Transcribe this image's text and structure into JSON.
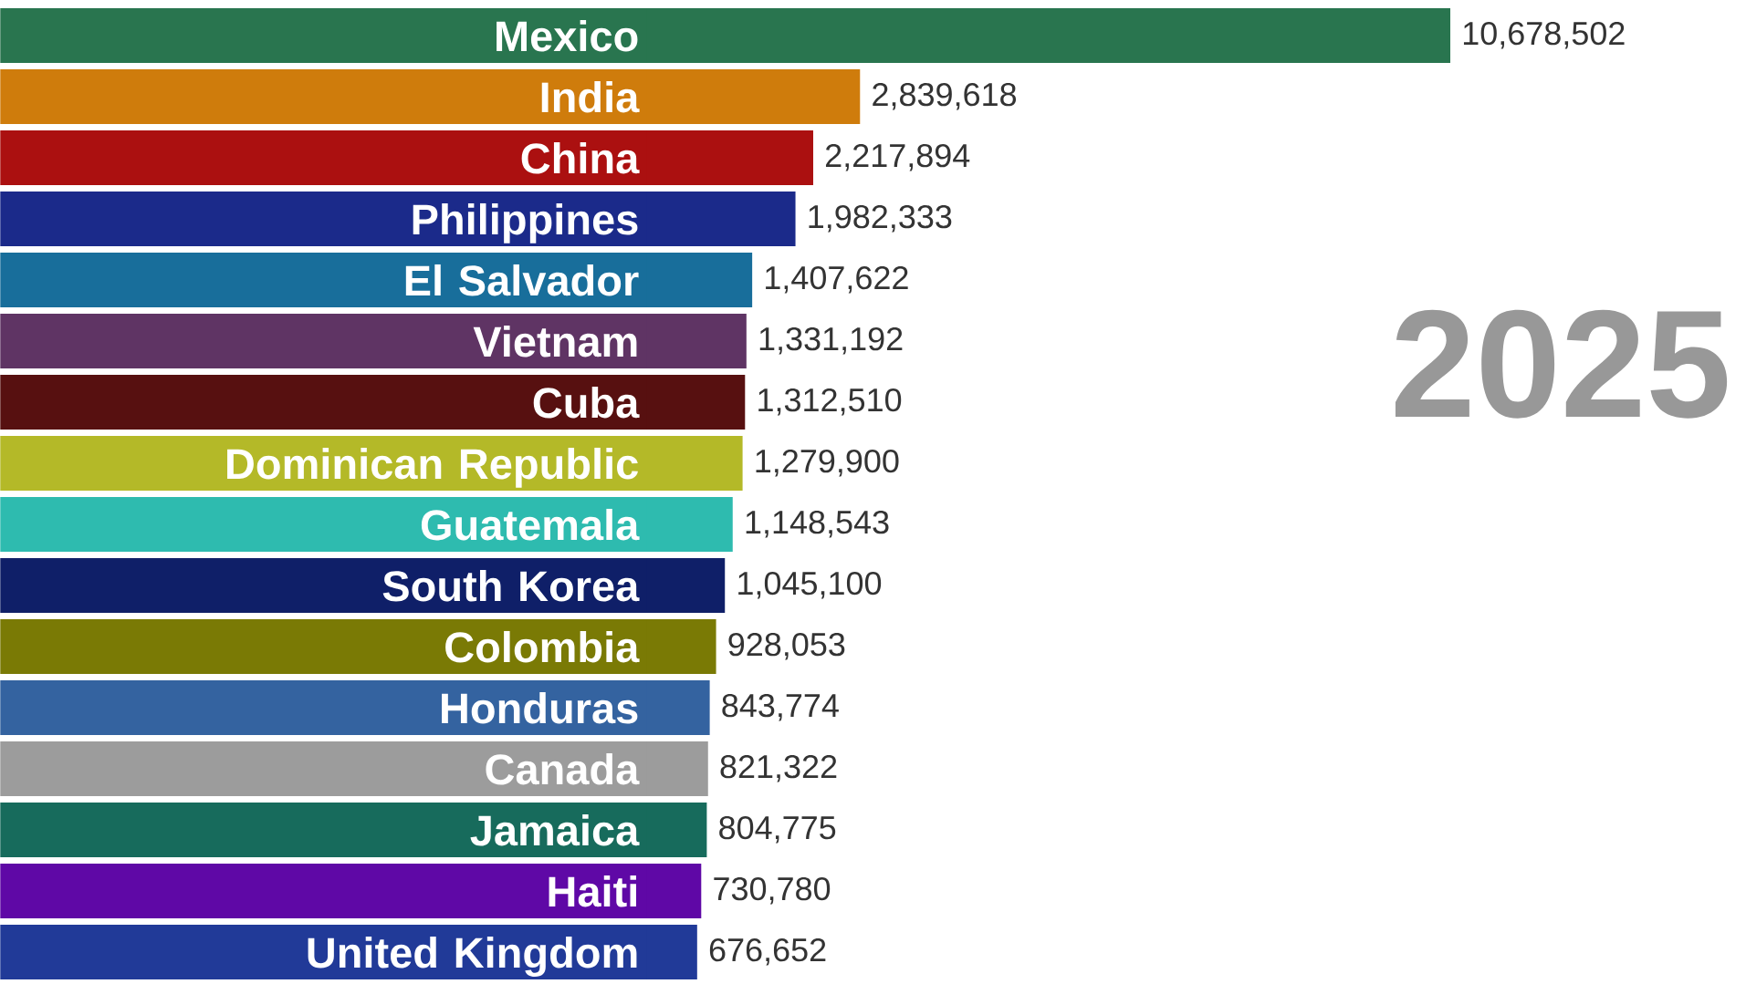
{
  "chart_data": {
    "type": "bar",
    "orientation": "horizontal",
    "categories": [
      "Mexico",
      "India",
      "China",
      "Philippines",
      "El Salvador",
      "Vietnam",
      "Cuba",
      "Dominican Republic",
      "Guatemala",
      "South Korea",
      "Colombia",
      "Honduras",
      "Canada",
      "Jamaica",
      "Haiti",
      "United Kingdom"
    ],
    "values": [
      10678502,
      2839618,
      2217894,
      1982333,
      1407622,
      1331192,
      1312510,
      1279900,
      1148543,
      1045100,
      928053,
      843774,
      821322,
      804775,
      730780,
      676652
    ],
    "value_labels": [
      "10,678,502",
      "2,839,618",
      "2,217,894",
      "1,982,333",
      "1,407,622",
      "1,331,192",
      "1,312,510",
      "1,279,900",
      "1,148,543",
      "1,045,100",
      "928,053",
      "843,774",
      "821,322",
      "804,775",
      "730,780",
      "676,652"
    ],
    "colors": [
      "#29754f",
      "#cf7c0c",
      "#ab1010",
      "#1b2a8a",
      "#186e9b",
      "#5f3464",
      "#571010",
      "#b4b928",
      "#2ebbaf",
      "#0f1f68",
      "#7a7a05",
      "#3463a0",
      "#9c9c9c",
      "#176b5c",
      "#5f08a6",
      "#213a98"
    ],
    "tick_labels": false,
    "annotations": [
      "2025"
    ]
  }
}
